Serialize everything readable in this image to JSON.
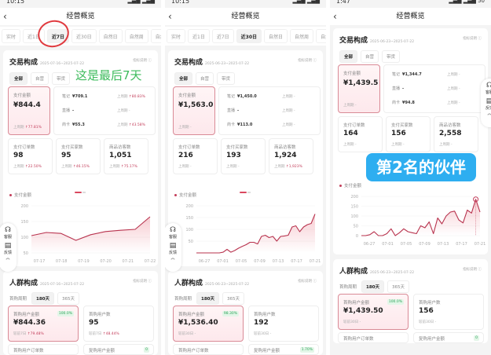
{
  "colors": {
    "accent": "#c33d5a",
    "selected_border": "#d98a96",
    "badge_green": "#2fa35a",
    "overlay_blue": "#2eaef0",
    "annotation_green": "#3dbb5c",
    "annotation_red": "#e0393e"
  },
  "panels": [
    {
      "status_time": "10:15",
      "battery": "",
      "header_title": "经营概览",
      "tabs": [
        "实时",
        "近1日",
        "近7日",
        "近30日",
        "自然日",
        "自然周",
        "自然月"
      ],
      "active_tab": 2,
      "trade": {
        "title": "交易构成",
        "date": "2025-07-16~2025-07-22",
        "info": "指标说明 ⓘ",
        "filters": [
          "全部",
          "自营",
          "带货"
        ],
        "active_filter": 0,
        "pay": {
          "label": "支付金额",
          "value": "¥844.4",
          "compare_label": "上周期",
          "compare": "↑77.81%"
        },
        "channels": [
          {
            "name": "笔记",
            "value": "¥709.1",
            "compare_label": "上周期",
            "compare": "↑80.83%"
          },
          {
            "name": "直播",
            "value": "-",
            "compare_label": "上周期",
            "compare": "-"
          },
          {
            "name": "商卡",
            "value": "¥55.3",
            "compare_label": "上周期",
            "compare": "↑43.58%"
          }
        ],
        "metrics": [
          {
            "label": "支付订单数",
            "value": "98",
            "compare_label": "上周期",
            "compare": "↑22.50%"
          },
          {
            "label": "支付买家数",
            "value": "95",
            "compare_label": "上周期",
            "compare": "↑46.15%"
          },
          {
            "label": "商品访客数",
            "value": "1,051",
            "compare_label": "上周期",
            "compare": "↑75.17%"
          }
        ]
      },
      "chart": {
        "legend": "支付金额",
        "yticks": [
          "200",
          "150",
          "100",
          "50"
        ],
        "ymin": 50,
        "ymax": 200,
        "xticks": [
          "07-17",
          "07-18",
          "07-19",
          "07-20",
          "07-21",
          "07-22"
        ],
        "values": [
          105,
          115,
          112,
          90,
          108,
          118,
          122,
          125,
          165
        ]
      },
      "crowd": {
        "title": "人群构成",
        "date": "2025-07-16~2025-07-22",
        "info": "指标说明 ⓘ",
        "period_label": "首购周期",
        "filters": [
          "180天",
          "365天"
        ],
        "active_filter": 0,
        "cards": [
          {
            "label": "首购用户金额",
            "value": "¥844.36",
            "badge": "100.0%",
            "compare_label": "较前7日",
            "compare": "↑79.48%"
          },
          {
            "label": "首购用户数",
            "value": "95",
            "badge": "",
            "compare_label": "较前7日",
            "compare": "↑48.44%"
          }
        ],
        "next_row": [
          {
            "label": "首购用户订单数",
            "badge": ""
          },
          {
            "label": "复购用户金额",
            "badge": "0"
          }
        ]
      },
      "widget": {
        "service": "客服",
        "feedback": "反馈"
      },
      "annotation": "这是最后7天"
    },
    {
      "status_time": "10:15",
      "battery": "",
      "header_title": "经营概览",
      "tabs": [
        "实时",
        "近1日",
        "近7日",
        "近30日",
        "自然日",
        "自然周",
        "自然月"
      ],
      "active_tab": 3,
      "trade": {
        "title": "交易构成",
        "date": "2025-06-23~2025-07-22",
        "info": "指标说明 ⓘ",
        "filters": [
          "全部",
          "自营",
          "带货"
        ],
        "active_filter": 0,
        "pay": {
          "label": "支付金额",
          "value": "¥1,563.0",
          "compare_label": "上周期",
          "compare": "-"
        },
        "channels": [
          {
            "name": "笔记",
            "value": "¥1,450.0",
            "compare_label": "上周期",
            "compare": "-"
          },
          {
            "name": "直播",
            "value": "-",
            "compare_label": "上周期",
            "compare": "-"
          },
          {
            "name": "商卡",
            "value": "¥113.0",
            "compare_label": "上周期",
            "compare": "-"
          }
        ],
        "metrics": [
          {
            "label": "支付订单数",
            "value": "216",
            "compare_label": "上周期",
            "compare": "-"
          },
          {
            "label": "支付买家数",
            "value": "193",
            "compare_label": "上周期",
            "compare": "-"
          },
          {
            "label": "商品访客数",
            "value": "1,924",
            "compare_label": "上周期",
            "compare": "↑1,923%"
          }
        ]
      },
      "chart": {
        "legend": "支付金额",
        "yticks": [
          "200",
          "150",
          "100",
          "50"
        ],
        "ymin": 0,
        "ymax": 200,
        "xticks": [
          "06-27",
          "07-01",
          "07-05",
          "07-09",
          "07-13",
          "07-17",
          "07-21"
        ],
        "values": [
          0,
          0,
          0,
          0,
          0,
          0,
          0,
          3,
          15,
          3,
          10,
          20,
          28,
          35,
          45,
          45,
          38,
          70,
          75,
          65,
          70,
          50,
          70,
          72,
          75,
          110,
          115,
          90,
          110,
          120,
          125,
          165
        ]
      },
      "crowd": {
        "title": "人群构成",
        "date": "2025-06-23~2025-07-22",
        "info": "指标说明 ⓘ",
        "period_label": "首购周期",
        "filters": [
          "180天",
          "365天"
        ],
        "active_filter": 0,
        "cards": [
          {
            "label": "首购用户金额",
            "value": "¥1,536.40",
            "badge": "98.30%",
            "compare_label": "较前30日",
            "compare": "-"
          },
          {
            "label": "首购用户数",
            "value": "192",
            "badge": "",
            "compare_label": "较前30日",
            "compare": "-"
          }
        ],
        "next_row": [
          {
            "label": "首购用户订单数",
            "badge": ""
          },
          {
            "label": "复购用户金额",
            "badge": "1.70%"
          }
        ]
      },
      "widget": {
        "service": "客服",
        "feedback": "反馈"
      }
    },
    {
      "status_time": "1:47",
      "battery": "50",
      "header_title": "经营概览",
      "tabs": [],
      "trade": {
        "title": "交易构成",
        "date": "2025-06-23~2025-07-22",
        "info": "指标说明 ⓘ",
        "filters": [
          "全部",
          "自营",
          "带货"
        ],
        "active_filter": 0,
        "pay": {
          "label": "支付金额",
          "value": "¥1,439.5",
          "compare_label": "上周期",
          "compare": "-"
        },
        "channels": [
          {
            "name": "笔记",
            "value": "¥1,344.7",
            "compare_label": "上周期",
            "compare": "-"
          },
          {
            "name": "直播",
            "value": "-",
            "compare_label": "上周期",
            "compare": "-"
          },
          {
            "name": "商卡",
            "value": "¥94.8",
            "compare_label": "上周期",
            "compare": "-"
          }
        ],
        "metrics": [
          {
            "label": "支付订单数",
            "value": "164",
            "compare_label": "上周期",
            "compare": "-"
          },
          {
            "label": "支付买家数",
            "value": "156",
            "compare_label": "上周期",
            "compare": "-"
          },
          {
            "label": "商品访客数",
            "value": "2,558",
            "compare_label": "上周期",
            "compare": "-"
          }
        ]
      },
      "chart": {
        "legend": "支付金额",
        "yticks": [
          "200",
          "150",
          "100",
          "50",
          "0"
        ],
        "ymin": 0,
        "ymax": 200,
        "xticks": [
          "06-27",
          "07-01",
          "07-05",
          "07-09",
          "07-13",
          "07-17",
          "07-21"
        ],
        "values": [
          0,
          0,
          5,
          20,
          0,
          0,
          10,
          35,
          0,
          15,
          35,
          20,
          15,
          10,
          50,
          40,
          70,
          10,
          90,
          60,
          100,
          120,
          125,
          80,
          65,
          130,
          115,
          185,
          120
        ]
      },
      "crowd": {
        "title": "人群构成",
        "date": "2025-06-23~2025-07-22",
        "info": "指标说明 ⓘ",
        "period_label": "首购周期",
        "filters": [
          "180天",
          "365天"
        ],
        "active_filter": 0,
        "cards": [
          {
            "label": "首购用户金额",
            "value": "¥1,439.50",
            "badge": "100.0%",
            "compare_label": "较前30日",
            "compare": "-"
          },
          {
            "label": "首购用户数",
            "value": "156",
            "badge": "",
            "compare_label": "较前30日",
            "compare": "-"
          }
        ],
        "next_row": [
          {
            "label": "首购用户订单数",
            "badge": ""
          },
          {
            "label": "复购用户金额",
            "badge": "0"
          }
        ]
      },
      "widget": {
        "service": "客服",
        "feedback": "反馈"
      },
      "annotation": "第2名的伙伴"
    }
  ]
}
